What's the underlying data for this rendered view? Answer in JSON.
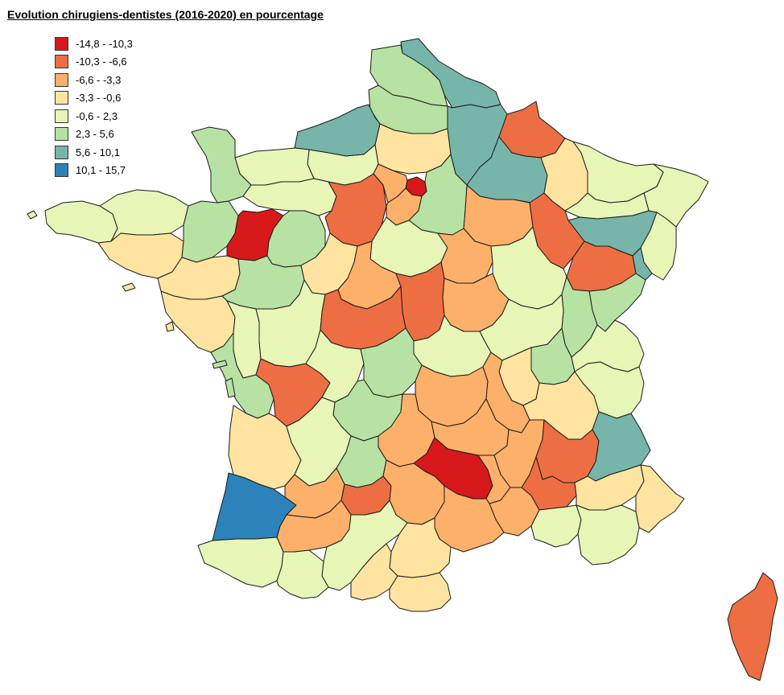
{
  "title": "Evolution chirugiens-dentistes (2016-2020) en pourcentage",
  "legend": {
    "placement": "top-left",
    "items": [
      {
        "label": "-14,8 - -10,3",
        "color": "#d7191c"
      },
      {
        "label": "-10,3 - -6,6",
        "color": "#ed6e43"
      },
      {
        "label": "-6,6 - -3,3",
        "color": "#fdb06a"
      },
      {
        "label": "-3,3 - -0,6",
        "color": "#fee4a0"
      },
      {
        "label": "-0,6 - 2,3",
        "color": "#e7f5b7"
      },
      {
        "label": "2,3 - 5,6",
        "color": "#b7e2a4"
      },
      {
        "label": "5,6 - 10,1",
        "color": "#77b5aa"
      },
      {
        "label": "10,1 - 15,7",
        "color": "#2b83ba"
      }
    ]
  },
  "map": {
    "region": "France",
    "departments": [
      {
        "id": "nord",
        "cls": 6
      },
      {
        "id": "pas-de-calais",
        "cls": 5
      },
      {
        "id": "somme",
        "cls": 5
      },
      {
        "id": "aisne",
        "cls": 6
      },
      {
        "id": "oise",
        "cls": 3
      },
      {
        "id": "ardennes",
        "cls": 1
      },
      {
        "id": "marne",
        "cls": 6
      },
      {
        "id": "meuse",
        "cls": 3
      },
      {
        "id": "moselle",
        "cls": 4
      },
      {
        "id": "bas-rhin",
        "cls": 4
      },
      {
        "id": "meurthe-et-moselle",
        "cls": 4
      },
      {
        "id": "vosges",
        "cls": 6
      },
      {
        "id": "haut-rhin",
        "cls": 4
      },
      {
        "id": "territoire-de-belfort",
        "cls": 6
      },
      {
        "id": "haute-marne",
        "cls": 1
      },
      {
        "id": "haute-saone",
        "cls": 1
      },
      {
        "id": "doubs",
        "cls": 5
      },
      {
        "id": "aube",
        "cls": 2
      },
      {
        "id": "seine-maritime",
        "cls": 6
      },
      {
        "id": "eure",
        "cls": 4
      },
      {
        "id": "calvados",
        "cls": 4
      },
      {
        "id": "manche",
        "cls": 5
      },
      {
        "id": "orne",
        "cls": 4
      },
      {
        "id": "finistere",
        "cls": 4
      },
      {
        "id": "cotes-d-armor",
        "cls": 4
      },
      {
        "id": "morbihan",
        "cls": 3
      },
      {
        "id": "ille-et-vilaine",
        "cls": 5
      },
      {
        "id": "mayenne",
        "cls": 0
      },
      {
        "id": "sarthe",
        "cls": 5
      },
      {
        "id": "eure-et-loir",
        "cls": 1
      },
      {
        "id": "paris",
        "cls": 0
      },
      {
        "id": "yvelines",
        "cls": 2
      },
      {
        "id": "essonne",
        "cls": 2
      },
      {
        "id": "seine-et-marne",
        "cls": 5
      },
      {
        "id": "loiret",
        "cls": 4
      },
      {
        "id": "yonne",
        "cls": 2
      },
      {
        "id": "cote-d-or",
        "cls": 4
      },
      {
        "id": "jura",
        "cls": 5
      },
      {
        "id": "ain",
        "cls": 5
      },
      {
        "id": "haute-savoie",
        "cls": 4
      },
      {
        "id": "loire-atlantique",
        "cls": 3
      },
      {
        "id": "maine-et-loire",
        "cls": 5
      },
      {
        "id": "indre-et-loire",
        "cls": 3
      },
      {
        "id": "loir-et-cher",
        "cls": 2
      },
      {
        "id": "cher",
        "cls": 1
      },
      {
        "id": "nievre",
        "cls": 2
      },
      {
        "id": "saone-et-loire",
        "cls": 4
      },
      {
        "id": "vendee",
        "cls": 3
      },
      {
        "id": "deux-sevres",
        "cls": 4
      },
      {
        "id": "vienne",
        "cls": 4
      },
      {
        "id": "indre",
        "cls": 1
      },
      {
        "id": "allier",
        "cls": 4
      },
      {
        "id": "rhone",
        "cls": 3
      },
      {
        "id": "charente-maritime",
        "cls": 5
      },
      {
        "id": "charente",
        "cls": 1
      },
      {
        "id": "haute-vienne",
        "cls": 4
      },
      {
        "id": "creuse",
        "cls": 5
      },
      {
        "id": "puy-de-dome",
        "cls": 2
      },
      {
        "id": "loire",
        "cls": 2
      },
      {
        "id": "isere",
        "cls": 3
      },
      {
        "id": "savoie",
        "cls": 4
      },
      {
        "id": "correze",
        "cls": 5
      },
      {
        "id": "cantal",
        "cls": 2
      },
      {
        "id": "haute-loire",
        "cls": 2
      },
      {
        "id": "ardeche",
        "cls": 2
      },
      {
        "id": "drome",
        "cls": 1
      },
      {
        "id": "hautes-alpes",
        "cls": 6
      },
      {
        "id": "gironde",
        "cls": 3
      },
      {
        "id": "dordogne",
        "cls": 4
      },
      {
        "id": "lot",
        "cls": 5
      },
      {
        "id": "aveyron",
        "cls": 0
      },
      {
        "id": "lozere",
        "cls": 2
      },
      {
        "id": "gard",
        "cls": 2
      },
      {
        "id": "vaucluse",
        "cls": 1
      },
      {
        "id": "alpes-de-haute-provence",
        "cls": 3
      },
      {
        "id": "alpes-maritimes",
        "cls": 3
      },
      {
        "id": "landes",
        "cls": 7
      },
      {
        "id": "lot-et-garonne",
        "cls": 2
      },
      {
        "id": "tarn-et-garonne",
        "cls": 1
      },
      {
        "id": "tarn",
        "cls": 2
      },
      {
        "id": "herault",
        "cls": 2
      },
      {
        "id": "bouches-du-rhone",
        "cls": 4
      },
      {
        "id": "var",
        "cls": 4
      },
      {
        "id": "pyrenees-atlantiques",
        "cls": 4
      },
      {
        "id": "gers",
        "cls": 2
      },
      {
        "id": "haute-garonne",
        "cls": 4
      },
      {
        "id": "aude",
        "cls": 3
      },
      {
        "id": "hautes-pyrenees",
        "cls": 4
      },
      {
        "id": "ariege",
        "cls": 3
      },
      {
        "id": "pyrenees-orientales",
        "cls": 3
      },
      {
        "id": "corse",
        "cls": 1
      }
    ]
  }
}
